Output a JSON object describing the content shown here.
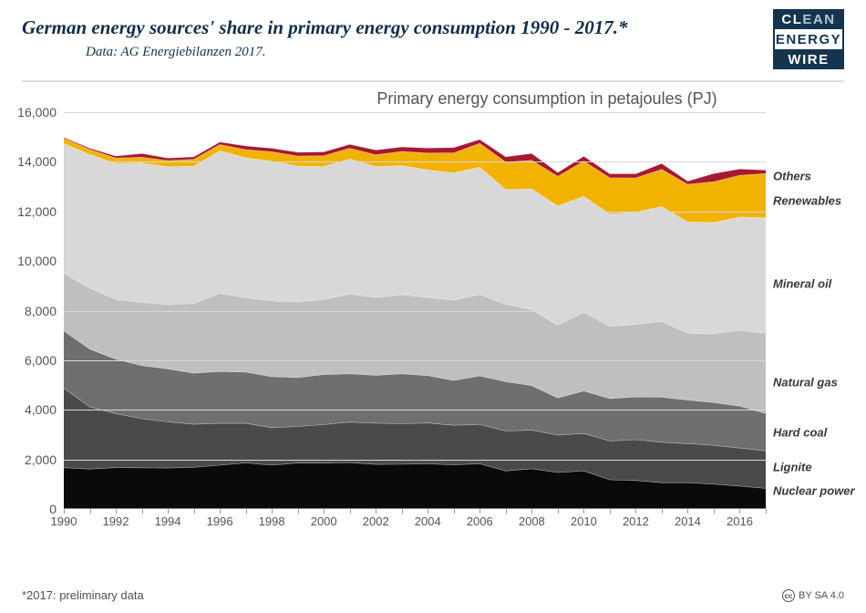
{
  "header": {
    "title": "German energy sources' share in primary energy consumption 1990 - 2017.*",
    "subtitle": "Data: AG Energiebilanzen 2017."
  },
  "logo": {
    "line1a": "CL",
    "line1b": "EAN",
    "line2": "ENERGY",
    "line3": "WIRE"
  },
  "chart": {
    "type": "stacked-area",
    "title": "Primary energy consumption in petajoules (PJ)",
    "background_color": "#ffffff",
    "grid_color": "#d7d7d7",
    "axis_font_color": "#545454",
    "axis_fontsize": 14,
    "label_fontsize": 13,
    "ylim": [
      0,
      16000
    ],
    "ytick_step": 2000,
    "yticks": [
      "0",
      "2,000",
      "4,000",
      "6,000",
      "8,000",
      "10,000",
      "12,000",
      "14,000",
      "16,000"
    ],
    "years": [
      1990,
      1991,
      1992,
      1993,
      1994,
      1995,
      1996,
      1997,
      1998,
      1999,
      2000,
      2001,
      2002,
      2003,
      2004,
      2005,
      2006,
      2007,
      2008,
      2009,
      2010,
      2011,
      2012,
      2013,
      2014,
      2015,
      2016,
      2017
    ],
    "xtick_labels": [
      "1990",
      "1992",
      "1994",
      "1996",
      "1998",
      "2000",
      "2002",
      "2004",
      "2006",
      "2008",
      "2010",
      "2012",
      "2014",
      "2016"
    ],
    "xtick_indices": [
      0,
      2,
      4,
      6,
      8,
      10,
      12,
      14,
      16,
      18,
      20,
      22,
      24,
      26
    ],
    "series": [
      {
        "name": "Nuclear power",
        "color": "#0a0a0a",
        "label_frac": 0.055,
        "values": [
          1668,
          1609,
          1671,
          1660,
          1650,
          1682,
          1764,
          1859,
          1764,
          1855,
          1851,
          1868,
          1798,
          1801,
          1822,
          1779,
          1826,
          1533,
          1623,
          1472,
          1533,
          1178,
          1150,
          1061,
          1060,
          1001,
          923,
          833
        ]
      },
      {
        "name": "Lignite",
        "color": "#4a4a4a",
        "label_frac": 0.125,
        "values": [
          3201,
          2507,
          2176,
          1983,
          1861,
          1734,
          1688,
          1595,
          1514,
          1473,
          1550,
          1633,
          1663,
          1639,
          1648,
          1596,
          1576,
          1612,
          1554,
          1507,
          1512,
          1562,
          1645,
          1629,
          1574,
          1565,
          1534,
          1510
        ]
      },
      {
        "name": "Hard coal",
        "color": "#6f6f6f",
        "label_frac": 0.225,
        "values": [
          2306,
          2330,
          2196,
          2139,
          2139,
          2060,
          2090,
          2065,
          2059,
          1967,
          2021,
          1949,
          1927,
          2010,
          1909,
          1808,
          1964,
          1990,
          1800,
          1496,
          1714,
          1715,
          1725,
          1818,
          1759,
          1727,
          1693,
          1510
        ]
      },
      {
        "name": "Natural gas",
        "color": "#bfbfbf",
        "label_frac": 0.375,
        "values": [
          2328,
          2454,
          2408,
          2546,
          2591,
          2812,
          3152,
          3007,
          3048,
          3057,
          3025,
          3215,
          3143,
          3190,
          3150,
          3236,
          3285,
          3118,
          3058,
          2937,
          3171,
          2911,
          2920,
          3059,
          2687,
          2770,
          3058,
          3230
        ]
      },
      {
        "name": "Mineral oil",
        "color": "#d8d8d8",
        "label_frac": 0.665,
        "values": [
          5238,
          5395,
          5487,
          5625,
          5561,
          5535,
          5749,
          5630,
          5641,
          5478,
          5366,
          5447,
          5273,
          5208,
          5146,
          5134,
          5130,
          4629,
          4877,
          4805,
          4684,
          4525,
          4527,
          4628,
          4493,
          4491,
          4567,
          4660
        ]
      },
      {
        "name": "Renewables",
        "color": "#f2b200",
        "label_frac": 0.91,
        "values": [
          204,
          201,
          212,
          230,
          247,
          277,
          253,
          332,
          378,
          406,
          428,
          434,
          478,
          565,
          677,
          807,
          962,
          1102,
          1146,
          1200,
          1413,
          1463,
          1385,
          1497,
          1519,
          1644,
          1678,
          1780
        ]
      },
      {
        "name": "Others",
        "color": "#a71930",
        "label_frac": 0.983,
        "values": [
          38,
          50,
          80,
          150,
          100,
          100,
          101,
          150,
          142,
          150,
          160,
          160,
          190,
          187,
          203,
          218,
          157,
          217,
          278,
          150,
          200,
          164,
          166,
          240,
          129,
          330,
          260,
          140
        ]
      }
    ]
  },
  "footnote": "*2017: preliminary data",
  "license": "BY SA 4.0"
}
